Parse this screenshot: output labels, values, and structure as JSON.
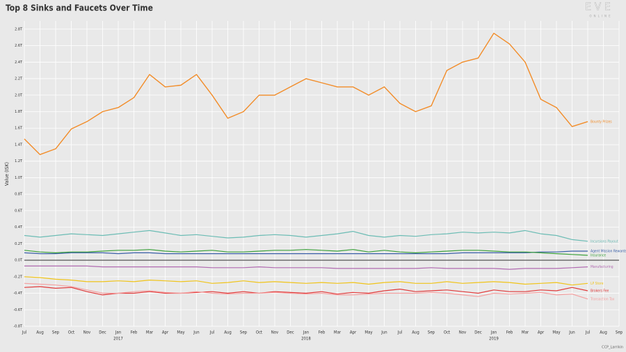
{
  "chart_data": {
    "type": "line",
    "title": "Top 8 Sinks and Faucets Over Time",
    "y_label": "Value (ISK)",
    "logo": {
      "name": "EVE",
      "sub": "ONLINE"
    },
    "credit": "CCP_Larrikin",
    "grid": true,
    "x": [
      "2016-07",
      "2016-08",
      "2016-09",
      "2016-10",
      "2016-11",
      "2016-12",
      "2017-01",
      "2017-02",
      "2017-03",
      "2017-04",
      "2017-05",
      "2017-06",
      "2017-07",
      "2017-08",
      "2017-09",
      "2017-10",
      "2017-11",
      "2017-12",
      "2018-01",
      "2018-02",
      "2018-03",
      "2018-04",
      "2018-05",
      "2018-06",
      "2018-07",
      "2018-08",
      "2018-09",
      "2018-10",
      "2018-11",
      "2018-12",
      "2019-01",
      "2019-02",
      "2019-03",
      "2019-04",
      "2019-05",
      "2019-06",
      "2019-07"
    ],
    "xlim": [
      "2016-07",
      "2019-09"
    ],
    "xticks": [
      {
        "value": "2016-07",
        "label": "Jul"
      },
      {
        "value": "2016-08",
        "label": "Aug"
      },
      {
        "value": "2016-09",
        "label": "Sep"
      },
      {
        "value": "2016-10",
        "label": "Oct"
      },
      {
        "value": "2016-11",
        "label": "Nov"
      },
      {
        "value": "2016-12",
        "label": "Dec"
      },
      {
        "value": "2017-01",
        "label": "Jan"
      },
      {
        "value": "2017-02",
        "label": "Feb"
      },
      {
        "value": "2017-03",
        "label": "Mar"
      },
      {
        "value": "2017-04",
        "label": "Apr"
      },
      {
        "value": "2017-05",
        "label": "May"
      },
      {
        "value": "2017-06",
        "label": "Jun"
      },
      {
        "value": "2017-07",
        "label": "Jul"
      },
      {
        "value": "2017-08",
        "label": "Aug"
      },
      {
        "value": "2017-09",
        "label": "Sep"
      },
      {
        "value": "2017-10",
        "label": "Oct"
      },
      {
        "value": "2017-11",
        "label": "Nov"
      },
      {
        "value": "2017-12",
        "label": "Dec"
      },
      {
        "value": "2018-01",
        "label": "Jan"
      },
      {
        "value": "2018-02",
        "label": "Feb"
      },
      {
        "value": "2018-03",
        "label": "Mar"
      },
      {
        "value": "2018-04",
        "label": "Apr"
      },
      {
        "value": "2018-05",
        "label": "May"
      },
      {
        "value": "2018-06",
        "label": "Jun"
      },
      {
        "value": "2018-07",
        "label": "Jul"
      },
      {
        "value": "2018-08",
        "label": "Aug"
      },
      {
        "value": "2018-09",
        "label": "Sep"
      },
      {
        "value": "2018-10",
        "label": "Oct"
      },
      {
        "value": "2018-11",
        "label": "Nov"
      },
      {
        "value": "2018-12",
        "label": "Dec"
      },
      {
        "value": "2019-01",
        "label": "Jan"
      },
      {
        "value": "2019-02",
        "label": "Feb"
      },
      {
        "value": "2019-03",
        "label": "Mar"
      },
      {
        "value": "2019-04",
        "label": "Apr"
      },
      {
        "value": "2019-05",
        "label": "May"
      },
      {
        "value": "2019-06",
        "label": "Jun"
      },
      {
        "value": "2019-07",
        "label": "Jul"
      },
      {
        "value": "2019-08",
        "label": "Aug"
      },
      {
        "value": "2019-09",
        "label": "Sep"
      }
    ],
    "year_labels": [
      {
        "value": "2017-01",
        "label": "2017"
      },
      {
        "value": "2018-01",
        "label": "2018"
      },
      {
        "value": "2019-01",
        "label": "2019"
      }
    ],
    "ylim": [
      -0.8,
      2.9
    ],
    "yticks": [
      {
        "value": -0.8,
        "label": "-0.8T"
      },
      {
        "value": -0.6,
        "label": "-0.6T"
      },
      {
        "value": -0.4,
        "label": "-0.4T"
      },
      {
        "value": -0.2,
        "label": "-0.2T"
      },
      {
        "value": 0,
        "label": "0.0T"
      },
      {
        "value": 0.2,
        "label": "0.2T"
      },
      {
        "value": 0.4,
        "label": "0.4T"
      },
      {
        "value": 0.6,
        "label": "0.6T"
      },
      {
        "value": 0.8,
        "label": "0.8T"
      },
      {
        "value": 1.0,
        "label": "1.0T"
      },
      {
        "value": 1.2,
        "label": "1.2T"
      },
      {
        "value": 1.4,
        "label": "1.4T"
      },
      {
        "value": 1.6,
        "label": "1.6T"
      },
      {
        "value": 1.8,
        "label": "1.8T"
      },
      {
        "value": 2.0,
        "label": "2.0T"
      },
      {
        "value": 2.2,
        "label": "2.2T"
      },
      {
        "value": 2.4,
        "label": "2.4T"
      },
      {
        "value": 2.6,
        "label": "2.6T"
      },
      {
        "value": 2.8,
        "label": "2.8T"
      }
    ],
    "series": [
      {
        "name": "Bounty Prizes",
        "color": "#f28c28",
        "values": [
          1.47,
          1.28,
          1.35,
          1.59,
          1.68,
          1.8,
          1.85,
          1.97,
          2.25,
          2.1,
          2.12,
          2.25,
          2.0,
          1.72,
          1.8,
          2.0,
          2.0,
          2.1,
          2.2,
          2.15,
          2.1,
          2.1,
          2.0,
          2.1,
          1.9,
          1.8,
          1.87,
          2.3,
          2.4,
          2.45,
          2.75,
          2.62,
          2.4,
          1.95,
          1.85,
          1.62,
          1.68
        ]
      },
      {
        "name": "Incursions Payout",
        "color": "#6bbcb4",
        "values": [
          0.3,
          0.28,
          0.3,
          0.32,
          0.31,
          0.3,
          0.32,
          0.34,
          0.36,
          0.33,
          0.3,
          0.31,
          0.29,
          0.27,
          0.28,
          0.3,
          0.31,
          0.3,
          0.28,
          0.3,
          0.32,
          0.35,
          0.3,
          0.28,
          0.3,
          0.29,
          0.31,
          0.32,
          0.34,
          0.33,
          0.34,
          0.33,
          0.36,
          0.32,
          0.3,
          0.25,
          0.23
        ]
      },
      {
        "name": "Agent Mission Rewards",
        "color": "#3a5fa8",
        "values": [
          0.09,
          0.08,
          0.08,
          0.09,
          0.09,
          0.09,
          0.08,
          0.09,
          0.09,
          0.08,
          0.08,
          0.08,
          0.08,
          0.08,
          0.08,
          0.08,
          0.08,
          0.08,
          0.08,
          0.08,
          0.08,
          0.08,
          0.08,
          0.08,
          0.08,
          0.08,
          0.08,
          0.08,
          0.09,
          0.09,
          0.09,
          0.09,
          0.09,
          0.1,
          0.1,
          0.11,
          0.11
        ]
      },
      {
        "name": "Insurance",
        "color": "#3aa03a",
        "values": [
          0.12,
          0.1,
          0.09,
          0.1,
          0.1,
          0.11,
          0.12,
          0.12,
          0.13,
          0.11,
          0.1,
          0.11,
          0.12,
          0.1,
          0.1,
          0.11,
          0.12,
          0.12,
          0.13,
          0.12,
          0.11,
          0.13,
          0.1,
          0.12,
          0.1,
          0.09,
          0.1,
          0.11,
          0.12,
          0.12,
          0.11,
          0.1,
          0.1,
          0.09,
          0.08,
          0.07,
          0.06
        ]
      },
      {
        "name": "Manufacturing",
        "color": "#b06ab0",
        "values": [
          -0.07,
          -0.07,
          -0.07,
          -0.07,
          -0.07,
          -0.08,
          -0.08,
          -0.08,
          -0.08,
          -0.08,
          -0.08,
          -0.08,
          -0.09,
          -0.09,
          -0.09,
          -0.08,
          -0.09,
          -0.09,
          -0.09,
          -0.09,
          -0.1,
          -0.1,
          -0.1,
          -0.1,
          -0.1,
          -0.1,
          -0.09,
          -0.1,
          -0.1,
          -0.1,
          -0.1,
          -0.11,
          -0.1,
          -0.1,
          -0.1,
          -0.09,
          -0.08
        ]
      },
      {
        "name": "LP Store",
        "color": "#f0c419",
        "values": [
          -0.2,
          -0.21,
          -0.23,
          -0.24,
          -0.26,
          -0.26,
          -0.25,
          -0.26,
          -0.24,
          -0.25,
          -0.26,
          -0.25,
          -0.28,
          -0.27,
          -0.25,
          -0.27,
          -0.26,
          -0.27,
          -0.28,
          -0.27,
          -0.28,
          -0.27,
          -0.29,
          -0.27,
          -0.26,
          -0.28,
          -0.28,
          -0.26,
          -0.28,
          -0.27,
          -0.26,
          -0.27,
          -0.29,
          -0.28,
          -0.27,
          -0.3,
          -0.28
        ]
      },
      {
        "name": "Brokers Fee",
        "color": "#e03a3a",
        "values": [
          -0.33,
          -0.32,
          -0.34,
          -0.33,
          -0.38,
          -0.42,
          -0.4,
          -0.4,
          -0.38,
          -0.4,
          -0.4,
          -0.39,
          -0.38,
          -0.4,
          -0.38,
          -0.4,
          -0.38,
          -0.39,
          -0.4,
          -0.38,
          -0.41,
          -0.39,
          -0.4,
          -0.37,
          -0.35,
          -0.38,
          -0.37,
          -0.36,
          -0.38,
          -0.4,
          -0.36,
          -0.38,
          -0.38,
          -0.36,
          -0.37,
          -0.33,
          -0.37
        ]
      },
      {
        "name": "Transaction Tax",
        "color": "#f4a0a0",
        "values": [
          -0.28,
          -0.29,
          -0.3,
          -0.32,
          -0.36,
          -0.4,
          -0.4,
          -0.38,
          -0.37,
          -0.39,
          -0.4,
          -0.38,
          -0.4,
          -0.41,
          -0.4,
          -0.4,
          -0.39,
          -0.4,
          -0.41,
          -0.4,
          -0.42,
          -0.42,
          -0.41,
          -0.4,
          -0.4,
          -0.4,
          -0.39,
          -0.4,
          -0.42,
          -0.44,
          -0.4,
          -0.41,
          -0.4,
          -0.39,
          -0.42,
          -0.41,
          -0.47
        ]
      }
    ]
  }
}
